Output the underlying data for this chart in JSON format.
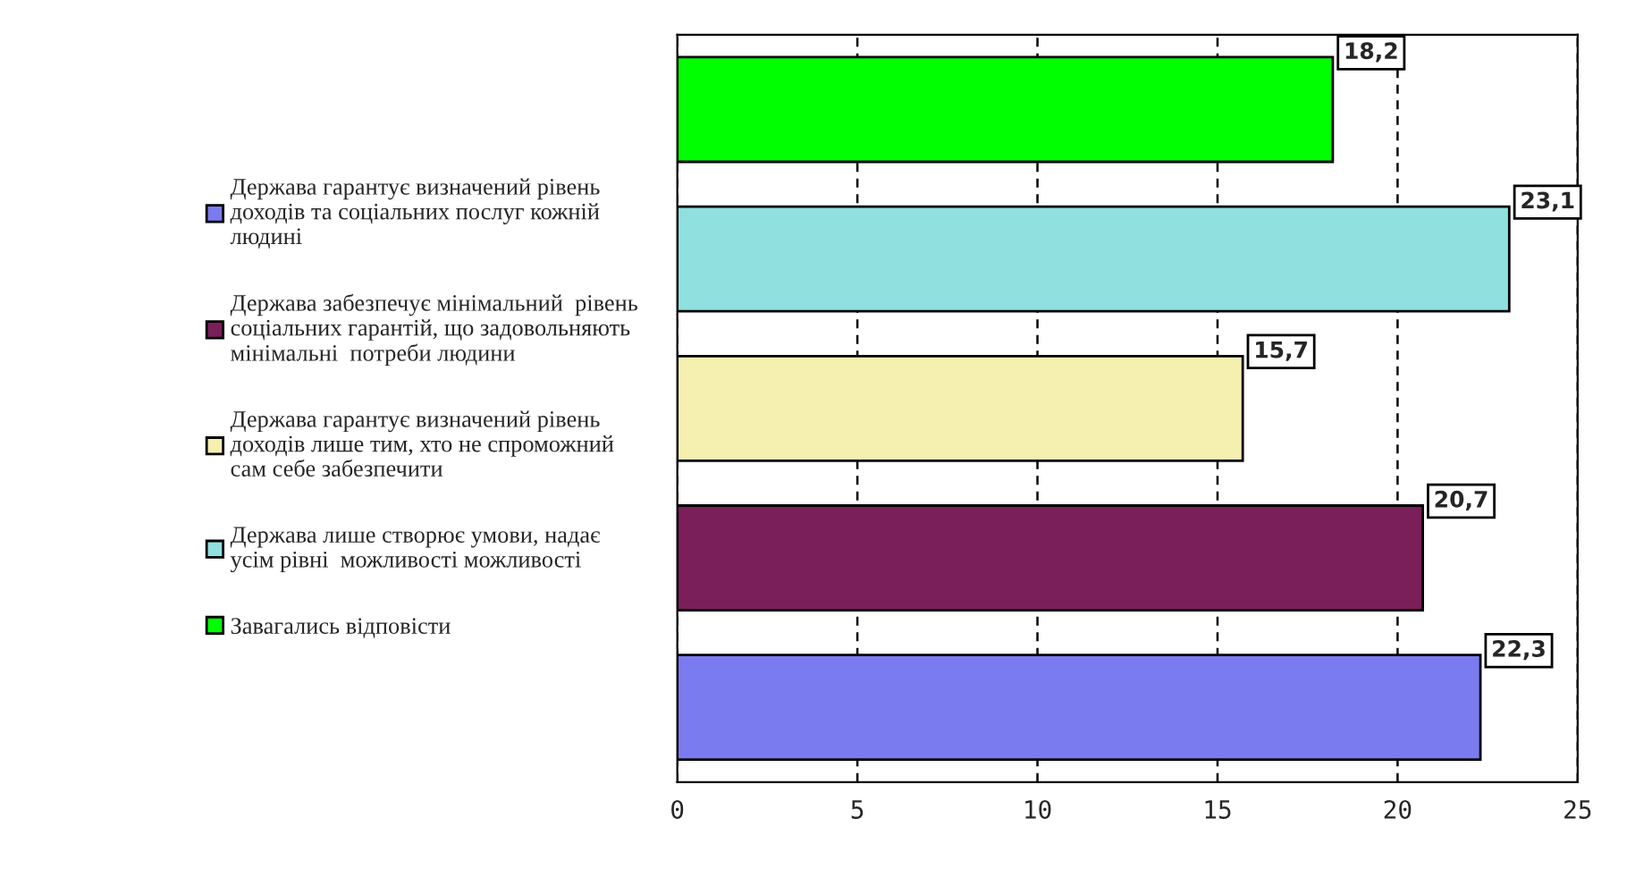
{
  "chart_data": {
    "type": "bar",
    "orientation": "horizontal",
    "categories": [
      null,
      null,
      null,
      null,
      null
    ],
    "series": [
      {
        "name": "Держава гарантує визначений рівень\nдоходів та соціальних послуг кожній\nлюдині",
        "color": "#7b7bf0",
        "values": [
          null,
          null,
          null,
          null,
          22.3
        ],
        "value_labels": [
          null,
          null,
          null,
          null,
          "22,3"
        ]
      },
      {
        "name": "Держава забезпечує мінімальний  рівень\nсоціальних гарантій, що задовольняють\nмінімальні  потреби людини",
        "color": "#7a1f5a",
        "values": [
          null,
          null,
          null,
          20.7,
          null
        ],
        "value_labels": [
          null,
          null,
          null,
          "20,7",
          null
        ]
      },
      {
        "name": "Держава гарантує визначений рівень\nдоходів лише тим, хто не спроможний\nсам себе забезпечити",
        "color": "#f5f0b0",
        "values": [
          null,
          null,
          15.7,
          null,
          null
        ],
        "value_labels": [
          null,
          null,
          "15,7",
          null,
          null
        ]
      },
      {
        "name": "Держава лише створює умови, надає\nусім рівні  можливості можливості",
        "color": "#90e0e0",
        "values": [
          null,
          23.1,
          null,
          null,
          null
        ],
        "value_labels": [
          null,
          "23,1",
          null,
          null,
          null
        ]
      },
      {
        "name": "Завагались відповісти",
        "color": "#00ff00",
        "values": [
          18.2,
          null,
          null,
          null,
          null
        ],
        "value_labels": [
          "18,2",
          null,
          null,
          null,
          null
        ]
      }
    ],
    "xlim": [
      0,
      25
    ],
    "xticks": [
      0,
      5,
      10,
      15,
      20,
      25
    ],
    "grid": "x",
    "legend": "left"
  }
}
